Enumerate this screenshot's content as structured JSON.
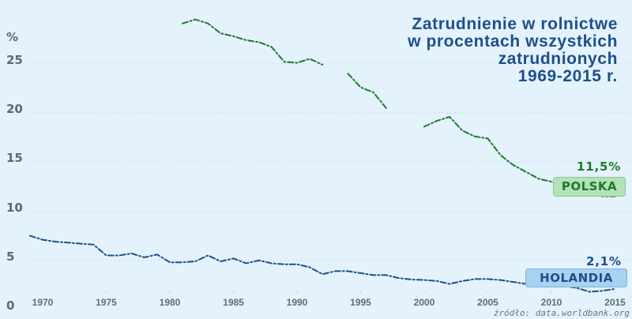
{
  "chart_data": {
    "type": "line",
    "title": "Zatrudnienie w rolnictwie w procentach wszystkich zatrudnionych 1969-2015 r.",
    "title_lines": [
      "Zatrudnienie w rolnictwe",
      "w procentach wszystkich",
      "zatrudnionych",
      "1969-2015 r."
    ],
    "xlabel": "",
    "ylabel": "%",
    "ylim": [
      0,
      30
    ],
    "xlim": [
      1969,
      2015
    ],
    "grid": true,
    "y_ticks": [
      0,
      5,
      10,
      15,
      20,
      25
    ],
    "x_ticks": [
      1970,
      1975,
      1980,
      1985,
      1990,
      1995,
      2000,
      2005,
      2010,
      2015
    ],
    "source": "źródło: data.worldbank.org",
    "series": [
      {
        "name": "POLSKA",
        "color": "#1e7a2a",
        "end_label": "11,5%",
        "segments": [
          {
            "x": [
              1981,
              1982,
              1983,
              1984,
              1985,
              1986,
              1987,
              1988,
              1989,
              1990,
              1991,
              1992
            ],
            "y": [
              29.1,
              29.5,
              29.1,
              28.1,
              27.8,
              27.4,
              27.2,
              26.7,
              25.2,
              25.1,
              25.5,
              24.9
            ]
          },
          {
            "x": [
              1994,
              1995,
              1996,
              1997
            ],
            "y": [
              24.0,
              22.6,
              22.1,
              20.5
            ]
          },
          {
            "x": [
              2000,
              2001,
              2002,
              2003,
              2004,
              2005,
              2006,
              2007,
              2008,
              2009,
              2010,
              2011,
              2012,
              2013,
              2014,
              2015
            ],
            "y": [
              18.6,
              19.2,
              19.6,
              18.2,
              17.6,
              17.4,
              15.7,
              14.7,
              14.0,
              13.3,
              13.0,
              12.6,
              12.6,
              12.2,
              11.5,
              11.5
            ]
          }
        ]
      },
      {
        "name": "HOLANDIA",
        "color": "#1d4f8c",
        "end_label": "2,1%",
        "segments": [
          {
            "x": [
              1969,
              1970,
              1971,
              1972,
              1973,
              1974,
              1975,
              1976,
              1977,
              1978,
              1979,
              1980,
              1981,
              1982,
              1983,
              1984,
              1985,
              1986,
              1987,
              1988,
              1989,
              1990,
              1991,
              1992,
              1993,
              1994,
              1995,
              1996,
              1997,
              1998,
              1999,
              2000,
              2001,
              2002,
              2003,
              2004,
              2005,
              2006,
              2007,
              2008,
              2009,
              2010,
              2011,
              2012,
              2013,
              2014,
              2015
            ],
            "y": [
              7.5,
              7.1,
              6.9,
              6.8,
              6.7,
              6.6,
              5.5,
              5.5,
              5.7,
              5.3,
              5.6,
              4.8,
              4.8,
              4.9,
              5.5,
              4.9,
              5.2,
              4.7,
              5.0,
              4.7,
              4.6,
              4.6,
              4.3,
              3.6,
              3.9,
              3.9,
              3.7,
              3.5,
              3.5,
              3.2,
              3.05,
              3.0,
              2.9,
              2.6,
              2.9,
              3.1,
              3.1,
              3.0,
              2.8,
              2.6,
              2.4,
              2.4,
              2.4,
              2.2,
              1.8,
              1.9,
              2.1
            ]
          }
        ]
      }
    ]
  },
  "labels": {
    "unit": "%",
    "polska_box": "POLSKA",
    "polska_value": "11,5%",
    "holandia_box": "HOLANDIA",
    "holandia_value": "2,1%",
    "source": "źródło: data.worldbank.org"
  },
  "colors": {
    "background": "#e4f2fc",
    "grid": "#cfe0ea",
    "title": "#1d4f8c",
    "polska": "#1e7a2a",
    "holandia": "#1d4f8c",
    "axis_text": "#5a6d66"
  }
}
